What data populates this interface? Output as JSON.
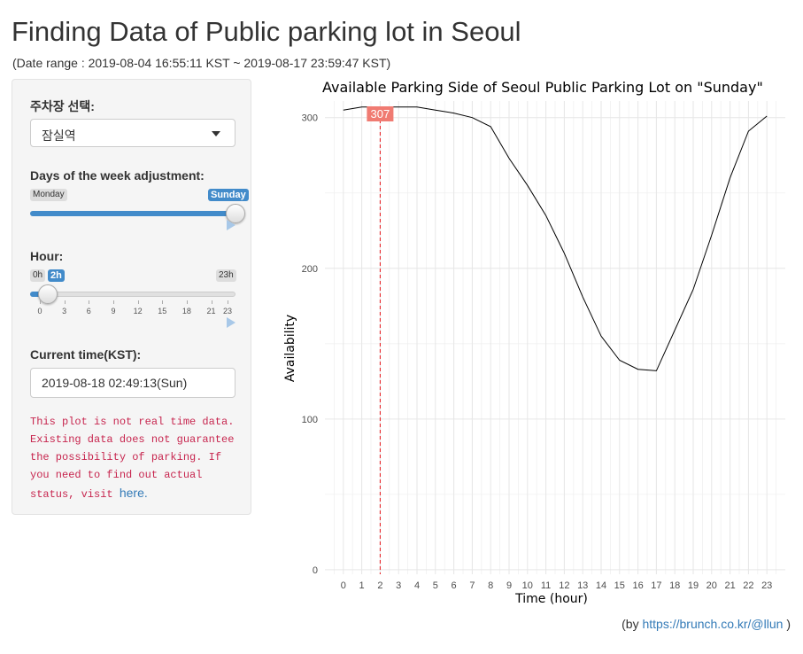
{
  "page": {
    "title": "Finding Data of Public parking lot in Seoul",
    "date_range": "(Date range : 2019-08-04 16:55:11 KST ~ 2019-08-17 23:59:47 KST)"
  },
  "sidebar": {
    "lot_label": "주차장 선택:",
    "lot_value": "잠실역",
    "day_label": "Days of the week adjustment:",
    "day_min": "Monday",
    "day_value": "Sunday",
    "hour_label": "Hour:",
    "hour_min": "0h",
    "hour_value": "2h",
    "hour_max": "23h",
    "hour_ticks": [
      "0",
      "3",
      "6",
      "9",
      "12",
      "15",
      "18",
      "21",
      "23"
    ],
    "hour_current": 2,
    "hour_range": [
      0,
      23
    ],
    "day_fraction": 1.0,
    "time_label": "Current time(KST):",
    "time_value": "2019-08-18 02:49:13(Sun)",
    "notice_text": "This plot is not real time data. Existing data does not guarantee the possibility of parking. If you need to find out actual status, visit",
    "notice_link": "here."
  },
  "chart_data": {
    "type": "line",
    "title": "Available Parking Side of Seoul Public Parking Lot on \"Sunday\"",
    "xlabel": "Time (hour)",
    "ylabel": "Availability",
    "x": [
      0,
      1,
      2,
      3,
      4,
      5,
      6,
      7,
      8,
      9,
      10,
      11,
      12,
      13,
      14,
      15,
      16,
      17,
      18,
      19,
      20,
      21,
      22,
      23
    ],
    "values": [
      305,
      307,
      307,
      307,
      307,
      305,
      303,
      300,
      294,
      273,
      255,
      235,
      210,
      181,
      155,
      139,
      133,
      132,
      159,
      186,
      222,
      260,
      291,
      301
    ],
    "ylim": [
      -3,
      311
    ],
    "yticks": [
      0,
      100,
      200,
      300
    ],
    "grid": true,
    "highlight": {
      "x": 2,
      "label": "307",
      "color": "#f07b72",
      "line_color": "#e8141a"
    },
    "line_color": "#000000"
  },
  "footer": {
    "prefix": "(by ",
    "link": "https://brunch.co.kr/@llun",
    "suffix": " )"
  }
}
